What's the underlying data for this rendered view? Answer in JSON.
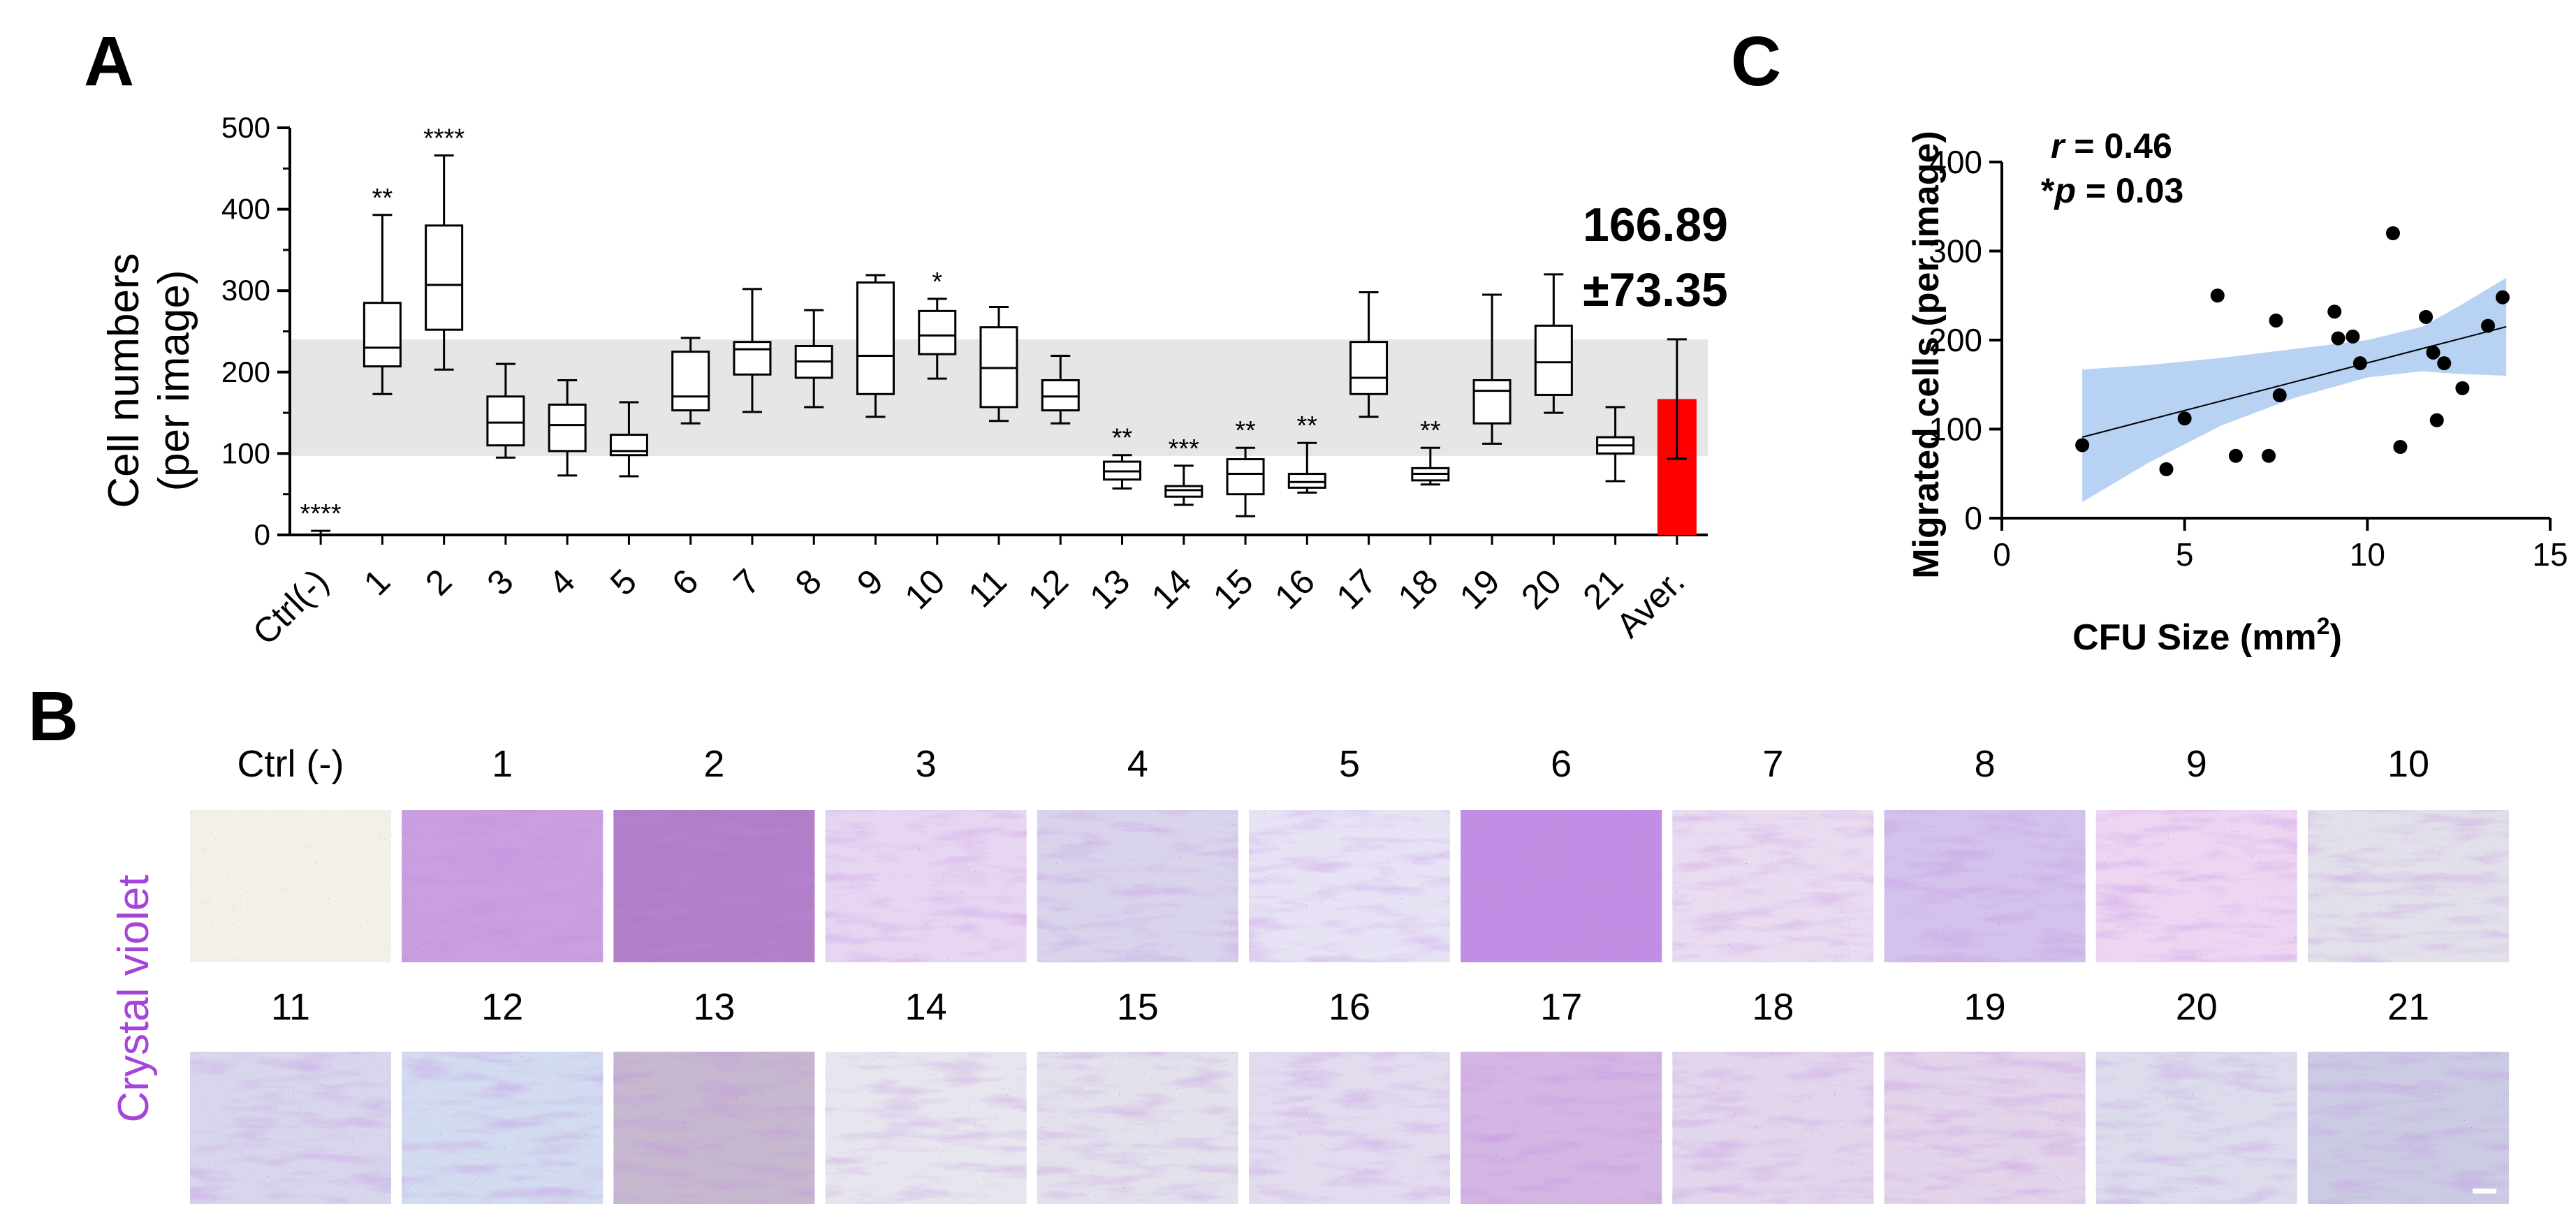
{
  "panels": {
    "a": "A",
    "b": "B",
    "c": "C"
  },
  "chart_data": [
    {
      "type": "box",
      "panel": "A",
      "ylabel_line1": "Cell numbers",
      "ylabel_line2": "(per image)",
      "ylim": [
        0,
        500
      ],
      "yticks": [
        "0",
        "100",
        "200",
        "300",
        "400",
        "500"
      ],
      "ytick_values": [
        0,
        100,
        200,
        300,
        400,
        500
      ],
      "shaded_band": [
        97,
        240
      ],
      "boxes": [
        {
          "label": "Ctrl(-)",
          "min": 0,
          "q1": 0,
          "median": 0,
          "q3": 0,
          "max": 5,
          "sig": "****"
        },
        {
          "label": "1",
          "min": 173,
          "q1": 207,
          "median": 230,
          "q3": 285,
          "max": 393,
          "sig": "**"
        },
        {
          "label": "2",
          "min": 203,
          "q1": 252,
          "median": 307,
          "q3": 380,
          "max": 466,
          "sig": "****"
        },
        {
          "label": "3",
          "min": 95,
          "q1": 110,
          "median": 138,
          "q3": 170,
          "max": 210,
          "sig": ""
        },
        {
          "label": "4",
          "min": 73,
          "q1": 103,
          "median": 135,
          "q3": 160,
          "max": 190,
          "sig": ""
        },
        {
          "label": "5",
          "min": 72,
          "q1": 98,
          "median": 103,
          "q3": 123,
          "max": 163,
          "sig": ""
        },
        {
          "label": "6",
          "min": 137,
          "q1": 153,
          "median": 170,
          "q3": 225,
          "max": 242,
          "sig": ""
        },
        {
          "label": "7",
          "min": 151,
          "q1": 197,
          "median": 228,
          "q3": 237,
          "max": 302,
          "sig": ""
        },
        {
          "label": "8",
          "min": 157,
          "q1": 193,
          "median": 213,
          "q3": 232,
          "max": 276,
          "sig": ""
        },
        {
          "label": "9",
          "min": 145,
          "q1": 173,
          "median": 220,
          "q3": 310,
          "max": 319,
          "sig": ""
        },
        {
          "label": "10",
          "min": 192,
          "q1": 222,
          "median": 245,
          "q3": 275,
          "max": 290,
          "sig": "*"
        },
        {
          "label": "11",
          "min": 140,
          "q1": 157,
          "median": 205,
          "q3": 255,
          "max": 280,
          "sig": ""
        },
        {
          "label": "12",
          "min": 137,
          "q1": 153,
          "median": 170,
          "q3": 190,
          "max": 220,
          "sig": ""
        },
        {
          "label": "13",
          "min": 57,
          "q1": 68,
          "median": 78,
          "q3": 90,
          "max": 98,
          "sig": "**"
        },
        {
          "label": "14",
          "min": 37,
          "q1": 47,
          "median": 55,
          "q3": 60,
          "max": 85,
          "sig": "***"
        },
        {
          "label": "15",
          "min": 23,
          "q1": 50,
          "median": 75,
          "q3": 93,
          "max": 107,
          "sig": "**"
        },
        {
          "label": "16",
          "min": 52,
          "q1": 58,
          "median": 65,
          "q3": 75,
          "max": 113,
          "sig": "**"
        },
        {
          "label": "17",
          "min": 145,
          "q1": 173,
          "median": 193,
          "q3": 237,
          "max": 298,
          "sig": ""
        },
        {
          "label": "18",
          "min": 62,
          "q1": 67,
          "median": 75,
          "q3": 82,
          "max": 107,
          "sig": "**"
        },
        {
          "label": "19",
          "min": 112,
          "q1": 137,
          "median": 177,
          "q3": 190,
          "max": 295,
          "sig": ""
        },
        {
          "label": "20",
          "min": 150,
          "q1": 172,
          "median": 212,
          "q3": 257,
          "max": 320,
          "sig": ""
        },
        {
          "label": "21",
          "min": 66,
          "q1": 100,
          "median": 110,
          "q3": 120,
          "max": 157,
          "sig": ""
        }
      ],
      "average_bar": {
        "label": "Aver.",
        "value": 166.89,
        "error": 73.35,
        "color": "#ff0000"
      },
      "average_text_line1": "166.89",
      "average_text_line2": "±73.35",
      "shade_color": "#e6e6e6"
    },
    {
      "type": "scatter",
      "panel": "C",
      "xlabel": "CFU Size (mm",
      "xlabel_sup": "2",
      "xlabel_close": ")",
      "ylabel": "Migrated cells (per image)",
      "xlim": [
        0,
        15
      ],
      "ylim": [
        0,
        400
      ],
      "xticks": [
        "0",
        "5",
        "10",
        "15"
      ],
      "xtick_values": [
        0,
        5,
        10,
        15
      ],
      "yticks": [
        "0",
        "100",
        "200",
        "300",
        "400"
      ],
      "ytick_values": [
        0,
        100,
        200,
        300,
        400
      ],
      "r_label": "r",
      "r_value": " = 0.46",
      "p_prefix": "*",
      "p_label": "p",
      "p_value": " = 0.03",
      "points": [
        [
          2.2,
          82
        ],
        [
          4.5,
          55
        ],
        [
          5.0,
          112
        ],
        [
          5.9,
          250
        ],
        [
          6.4,
          70
        ],
        [
          7.3,
          70
        ],
        [
          7.5,
          222
        ],
        [
          7.6,
          138
        ],
        [
          9.1,
          232
        ],
        [
          9.2,
          202
        ],
        [
          9.6,
          204
        ],
        [
          9.8,
          174
        ],
        [
          10.7,
          320
        ],
        [
          10.9,
          80
        ],
        [
          11.6,
          226
        ],
        [
          11.8,
          186
        ],
        [
          11.9,
          110
        ],
        [
          12.1,
          174
        ],
        [
          12.6,
          146
        ],
        [
          13.3,
          216
        ],
        [
          13.7,
          248
        ]
      ],
      "fit_line": {
        "x": [
          2.2,
          13.8
        ],
        "y": [
          91,
          215
        ]
      },
      "ci_upper": [
        [
          2.2,
          167
        ],
        [
          4,
          172
        ],
        [
          6,
          180
        ],
        [
          8,
          190
        ],
        [
          10,
          200
        ],
        [
          11.5,
          215
        ],
        [
          12.5,
          238
        ],
        [
          13.8,
          270
        ]
      ],
      "ci_lower": [
        [
          2.2,
          18
        ],
        [
          4,
          62
        ],
        [
          6,
          104
        ],
        [
          8,
          135
        ],
        [
          10,
          158
        ],
        [
          11.5,
          165
        ],
        [
          12.5,
          162
        ],
        [
          13.8,
          160
        ]
      ],
      "band_color": "#b7d2f2"
    }
  ],
  "panel_b": {
    "side_label": "Crystal violet",
    "side_color": "#a544d6",
    "row1": [
      {
        "label": "Ctrl (-)",
        "tint": "#f2f0e8"
      },
      {
        "label": "1",
        "tint": "#c99fe0"
      },
      {
        "label": "2",
        "tint": "#b27ec8"
      },
      {
        "label": "3",
        "tint": "#e7d6f2"
      },
      {
        "label": "4",
        "tint": "#d9d4ec"
      },
      {
        "label": "5",
        "tint": "#e7e3f4"
      },
      {
        "label": "6",
        "tint": "#c08fe4"
      },
      {
        "label": "7",
        "tint": "#e9dcf0"
      },
      {
        "label": "8",
        "tint": "#d3c2ec"
      },
      {
        "label": "9",
        "tint": "#ecd6f2"
      },
      {
        "label": "10",
        "tint": "#e2e0ea"
      }
    ],
    "row2": [
      {
        "label": "11",
        "tint": "#d8d6ec"
      },
      {
        "label": "12",
        "tint": "#d2dbef"
      },
      {
        "label": "13",
        "tint": "#c6b8cf"
      },
      {
        "label": "14",
        "tint": "#e7e6ee"
      },
      {
        "label": "15",
        "tint": "#e3e1ec"
      },
      {
        "label": "16",
        "tint": "#e3dcef"
      },
      {
        "label": "17",
        "tint": "#d4b6e4"
      },
      {
        "label": "18",
        "tint": "#e2d6ec"
      },
      {
        "label": "19",
        "tint": "#e2d4ea"
      },
      {
        "label": "20",
        "tint": "#dcdcec"
      },
      {
        "label": "21",
        "tint": "#cbcbe3"
      }
    ],
    "stain_color": "#8a3fc4"
  }
}
